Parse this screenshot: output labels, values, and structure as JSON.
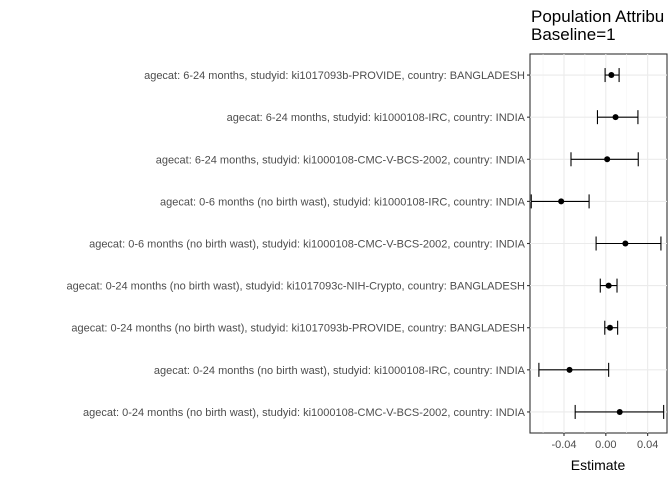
{
  "chart_data": {
    "type": "scatter",
    "title": "Population Attribu",
    "subtitle": "Baseline=1",
    "xlabel": "Estimate",
    "ylabel": "",
    "xlim": [
      -0.0725,
      0.0585
    ],
    "xticks": [
      -0.04,
      0.0,
      0.04
    ],
    "xtick_labels": [
      "-0.04",
      "0.00",
      "0.04"
    ],
    "grid": true,
    "categories": [
      "agecat: 6-24 months, studyid: ki1017093b-PROVIDE, country: BANGLADESH",
      "agecat: 6-24 months, studyid: ki1000108-IRC, country: INDIA",
      "agecat: 6-24 months, studyid: ki1000108-CMC-V-BCS-2002, country: INDIA",
      "agecat: 0-6 months (no birth wast), studyid: ki1000108-IRC, country: INDIA",
      "agecat: 0-6 months (no birth wast), studyid: ki1000108-CMC-V-BCS-2002, country: INDIA",
      "agecat: 0-24 months (no birth wast), studyid: ki1017093c-NIH-Crypto, country: BANGLADESH",
      "agecat: 0-24 months (no birth wast), studyid: ki1017093b-PROVIDE, country: BANGLADESH",
      "agecat: 0-24 months (no birth wast), studyid: ki1000108-IRC, country: INDIA",
      "agecat: 0-24 months (no birth wast), studyid: ki1000108-CMC-V-BCS-2002, country: INDIA"
    ],
    "series": [
      {
        "estimate": [
          0.0053,
          0.0093,
          0.0013,
          -0.0427,
          0.0187,
          0.0027,
          0.004,
          -0.0347,
          0.0133
        ],
        "ci_lower": [
          -0.0007,
          -0.008,
          -0.0333,
          -0.0713,
          -0.0093,
          -0.0053,
          -0.001,
          -0.064,
          -0.0293
        ],
        "ci_upper": [
          0.0127,
          0.0307,
          0.031,
          -0.016,
          0.0527,
          0.0107,
          0.0113,
          0.0027,
          0.0553
        ]
      }
    ]
  }
}
